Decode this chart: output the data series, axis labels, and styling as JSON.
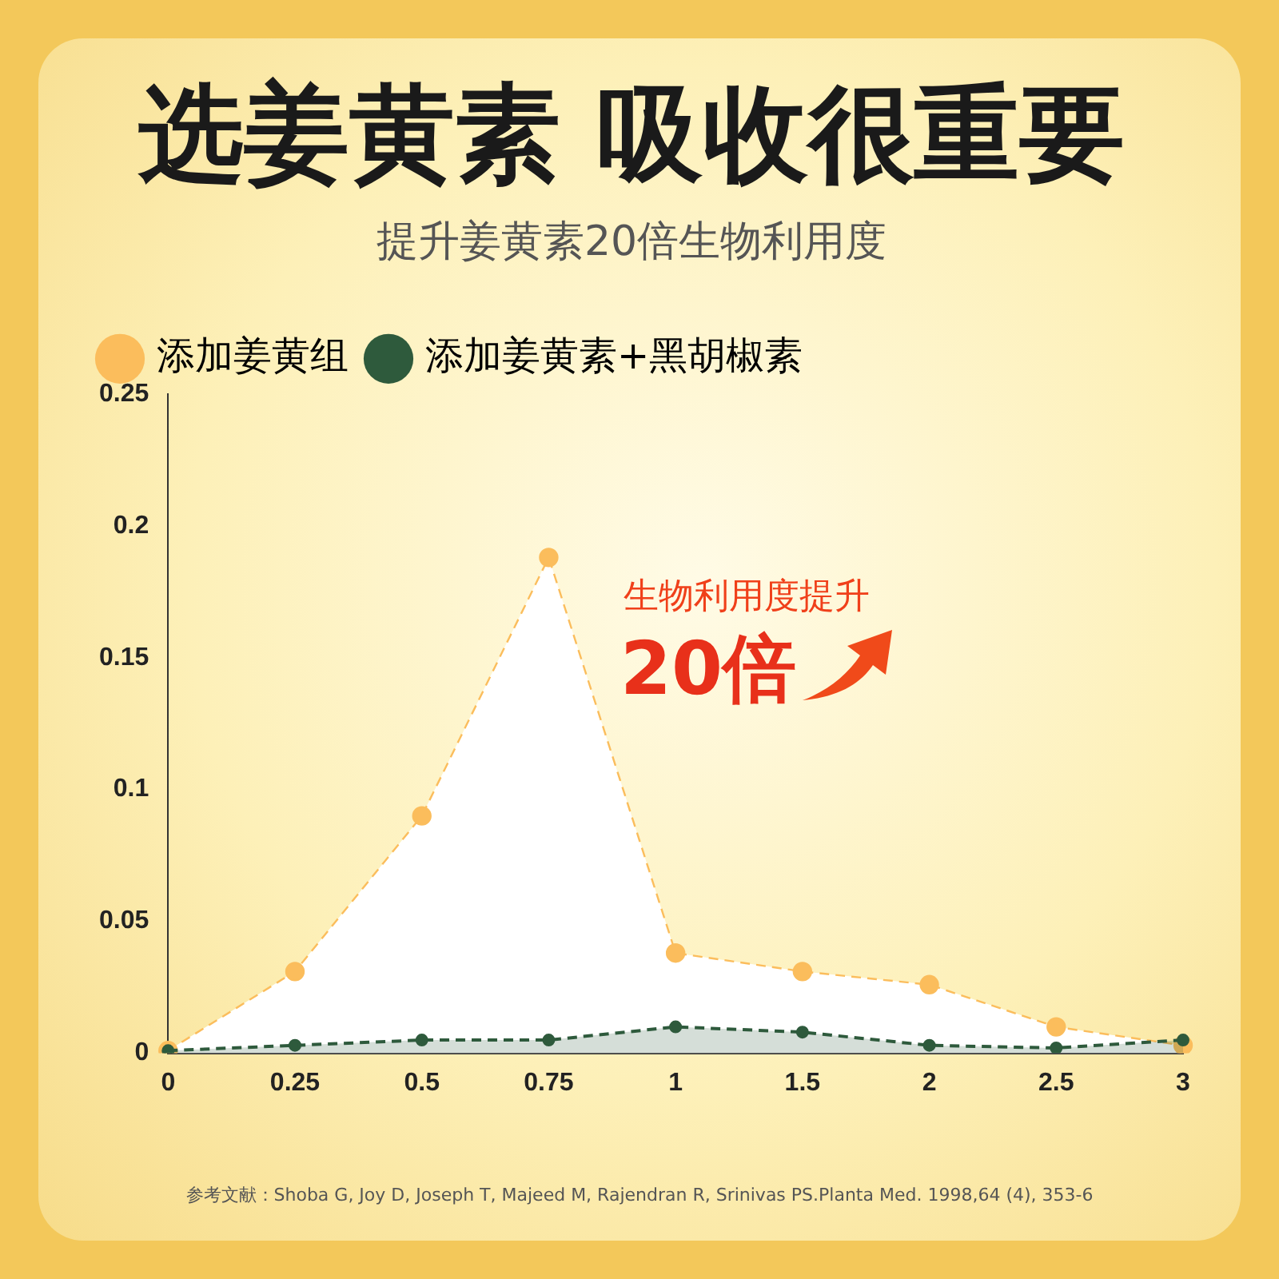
{
  "chart_data": {
    "type": "area",
    "title": "选姜黄素 吸收很重要",
    "subtitle": "提升姜黄素20倍生物利用度",
    "categories": [
      "0",
      "0.25",
      "0.5",
      "0.75",
      "1",
      "1.5",
      "2",
      "2.5",
      "3"
    ],
    "series": [
      {
        "name": "添加姜黄组",
        "color": "#fbbd5c",
        "values": [
          0.001,
          0.031,
          0.09,
          0.188,
          0.038,
          0.031,
          0.026,
          0.01,
          0.003
        ]
      },
      {
        "name": "添加姜黄素+黑胡椒素",
        "color": "#2e5a3c",
        "values": [
          0.001,
          0.003,
          0.005,
          0.005,
          0.01,
          0.008,
          0.003,
          0.002,
          0.005
        ]
      }
    ],
    "ylim": [
      0,
      0.25
    ],
    "yticks": [
      0,
      0.05,
      0.1,
      0.15,
      0.2,
      0.25
    ],
    "grid": false,
    "legend": "top left",
    "marker": "circle",
    "line_style": "dashed",
    "annotations": [
      "生物利用度提升",
      "20倍",
      "参考文献：Shoba G, Joy D, Joseph T, Majeed M, Rajendran R, Srinivas PS.Planta Med. 1998,64 (4), 353-6"
    ]
  }
}
